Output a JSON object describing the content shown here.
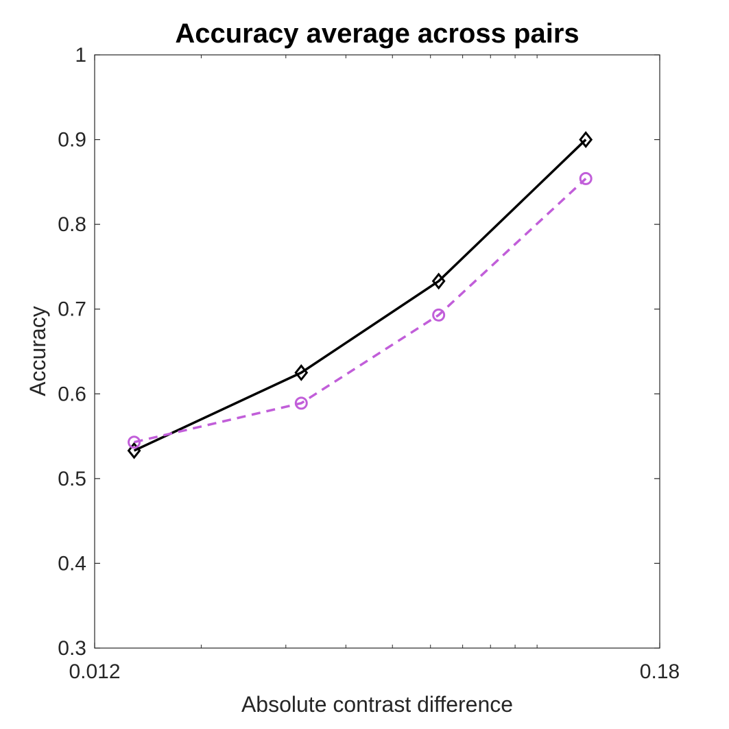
{
  "chart_data": {
    "type": "line",
    "title": "Accuracy average across pairs",
    "xlabel": "Absolute contrast difference",
    "ylabel": "Accuracy",
    "xscale": "log",
    "xlim": [
      0.012,
      0.18
    ],
    "ylim": [
      0.3,
      1
    ],
    "xticks": [
      {
        "value": 0.012,
        "label": "0.012"
      },
      {
        "value": 0.18,
        "label": "0.18"
      }
    ],
    "yticks": [
      {
        "value": 0.3,
        "label": "0.3"
      },
      {
        "value": 0.4,
        "label": "0.4"
      },
      {
        "value": 0.5,
        "label": "0.5"
      },
      {
        "value": 0.6,
        "label": "0.6"
      },
      {
        "value": 0.7,
        "label": "0.7"
      },
      {
        "value": 0.8,
        "label": "0.8"
      },
      {
        "value": 0.9,
        "label": "0.9"
      },
      {
        "value": 1,
        "label": "1"
      }
    ],
    "grid": false,
    "series": [
      {
        "x": [
          0.0145,
          0.0323,
          0.0624,
          0.1263
        ],
        "y": [
          0.533,
          0.625,
          0.733,
          0.9
        ],
        "color": "#000000",
        "line_style": "solid",
        "marker": "diamond"
      },
      {
        "x": [
          0.0145,
          0.0323,
          0.0624,
          0.1263
        ],
        "y": [
          0.543,
          0.589,
          0.693,
          0.854
        ],
        "color": "#c15ed9",
        "line_style": "dashed",
        "marker": "circle"
      }
    ]
  }
}
